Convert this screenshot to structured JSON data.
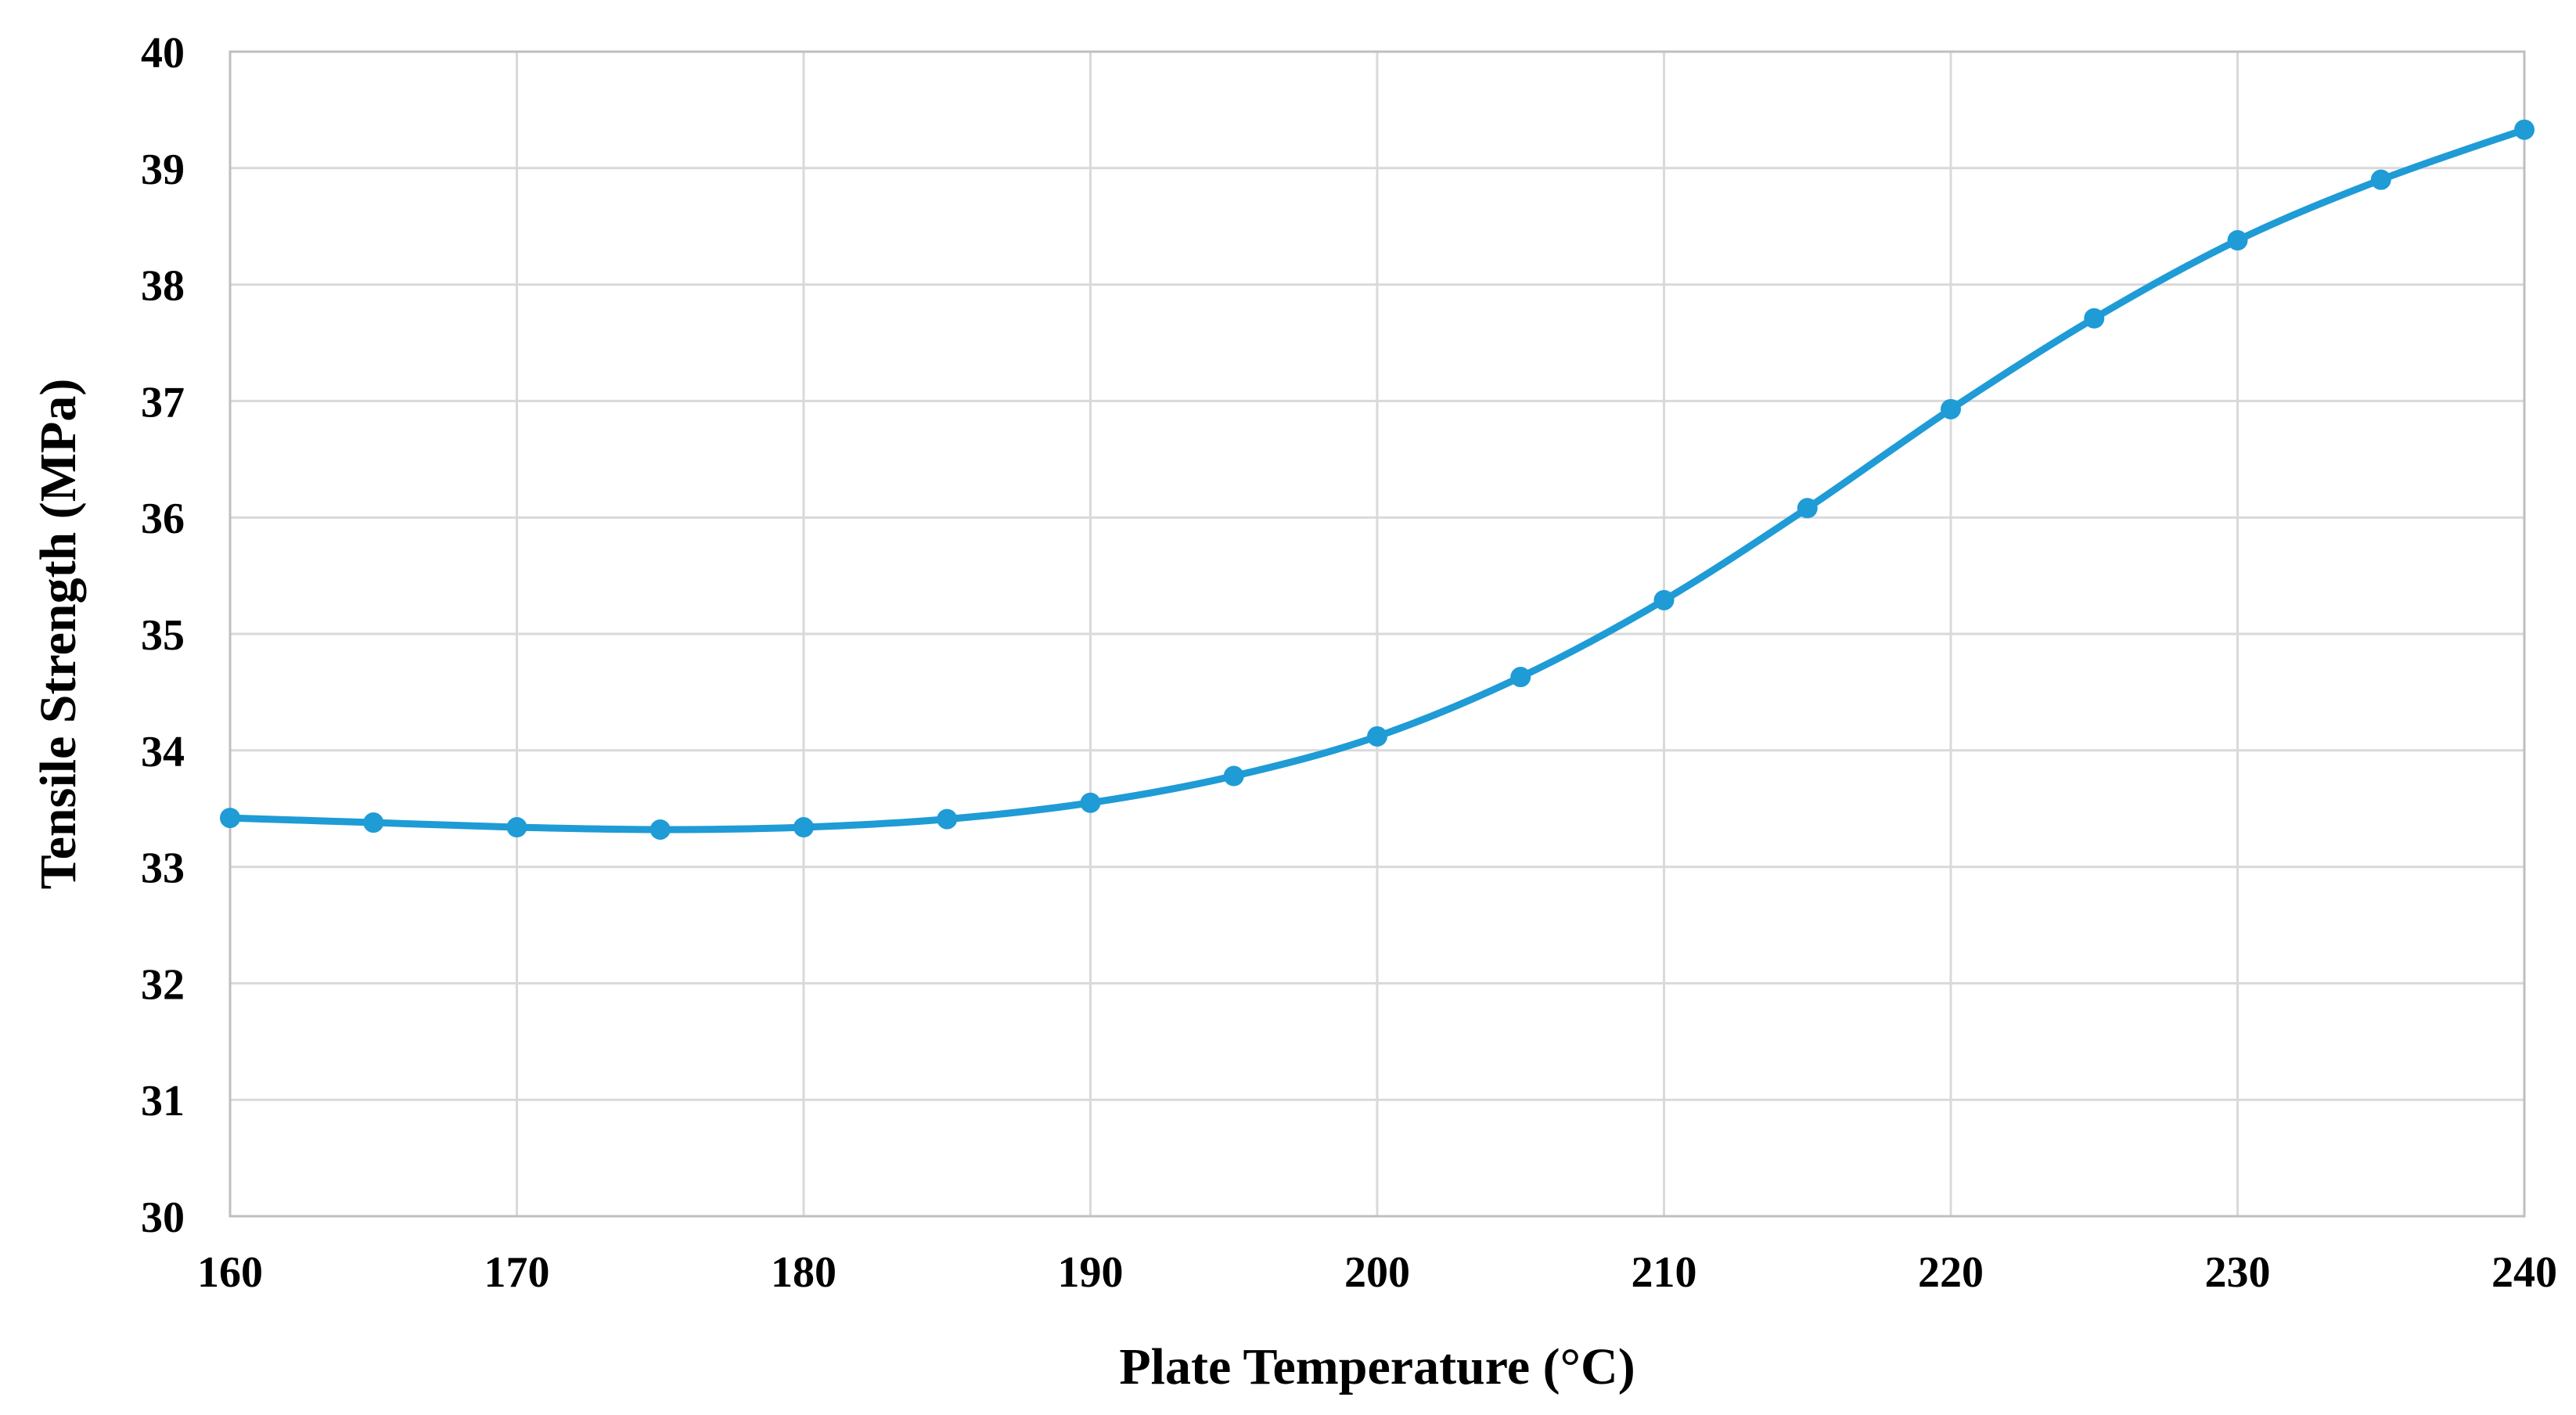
{
  "chart_data": {
    "type": "line",
    "title": "",
    "xlabel": "Plate Temperature (°C)",
    "ylabel": "Tensile Strength (MPa)",
    "xlim": [
      160,
      240
    ],
    "ylim": [
      30,
      40
    ],
    "xticks": [
      160,
      170,
      180,
      190,
      200,
      210,
      220,
      230,
      240
    ],
    "yticks": [
      30,
      31,
      32,
      33,
      34,
      35,
      36,
      37,
      38,
      39,
      40
    ],
    "grid": true,
    "smooth": true,
    "marker": "circle",
    "series": [
      {
        "color": "#1f9bd6",
        "x": [
          160,
          165,
          170,
          175,
          180,
          185,
          190,
          195,
          200,
          205,
          210,
          215,
          220,
          225,
          230,
          235,
          240
        ],
        "y": [
          33.42,
          33.38,
          33.34,
          33.32,
          33.34,
          33.41,
          33.55,
          33.78,
          34.12,
          34.63,
          35.29,
          36.08,
          36.93,
          37.71,
          38.38,
          38.9,
          39.33
        ]
      }
    ]
  }
}
